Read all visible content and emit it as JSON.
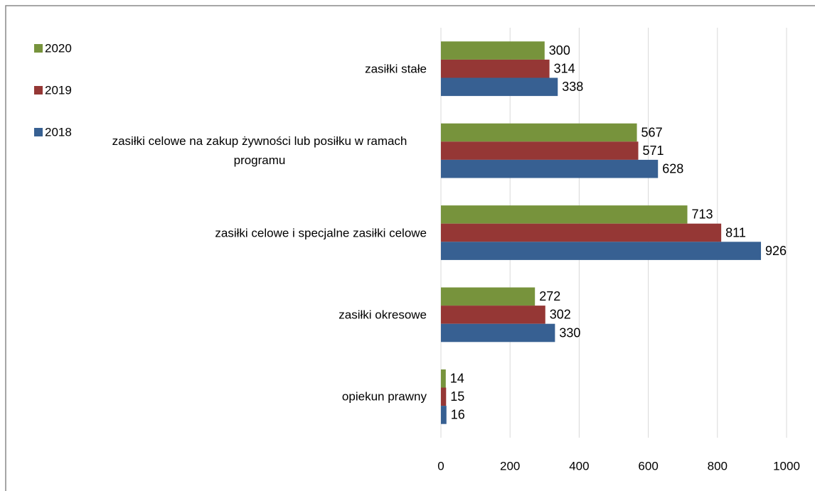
{
  "chart_data": {
    "type": "bar",
    "orientation": "horizontal",
    "categories": [
      "zasiłki stałe",
      "zasiłki celowe na zakup żywności lub posiłku w ramach programu",
      "zasiłki celowe i specjalne zasiłki celowe",
      "zasiłki okresowe",
      "opiekun prawny"
    ],
    "series": [
      {
        "name": "2020",
        "color": "#77933c",
        "values": [
          300,
          567,
          713,
          272,
          14
        ]
      },
      {
        "name": "2019",
        "color": "#953735",
        "values": [
          314,
          571,
          811,
          302,
          15
        ]
      },
      {
        "name": "2018",
        "color": "#376092",
        "values": [
          338,
          628,
          926,
          330,
          16
        ]
      }
    ],
    "xlim": [
      0,
      1000
    ],
    "xticks": [
      0,
      200,
      400,
      600,
      800,
      1000
    ],
    "grid": true,
    "legend": "left"
  }
}
